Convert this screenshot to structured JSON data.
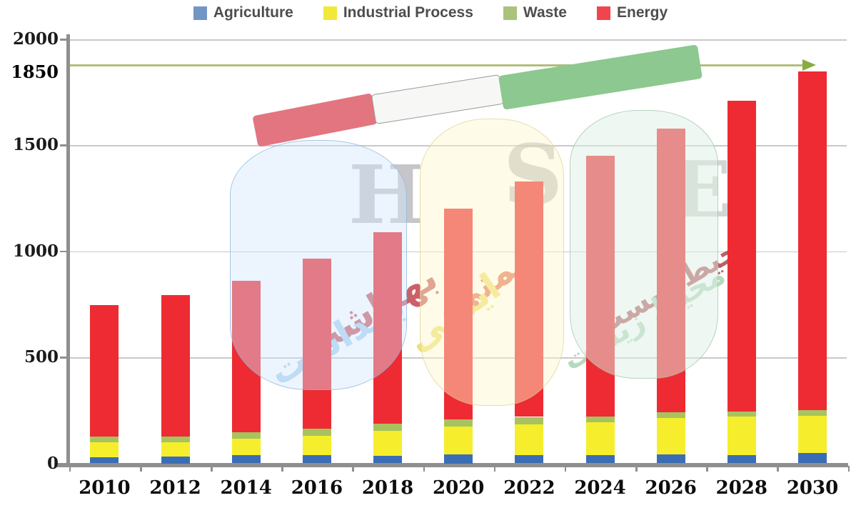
{
  "legend": [
    {
      "label": "Agriculture",
      "color": "#7296c4"
    },
    {
      "label": "Industrial Process",
      "color": "#f2e838"
    },
    {
      "label": "Waste",
      "color": "#abc27b"
    },
    {
      "label": "Energy",
      "color": "#f1454d"
    }
  ],
  "chart_data": {
    "type": "stacked-bar",
    "title": "",
    "categories": [
      "2010",
      "2012",
      "2014",
      "2016",
      "2018",
      "2020",
      "2022",
      "2024",
      "2026",
      "2028",
      "2030"
    ],
    "series": [
      {
        "name": "Agriculture",
        "color": "#3a6db5",
        "values": [
          30,
          32,
          38,
          40,
          34,
          42,
          38,
          38,
          41,
          38,
          50
        ]
      },
      {
        "name": "Industrial Process",
        "color": "#f6ee2c",
        "values": [
          68,
          68,
          77,
          90,
          120,
          132,
          147,
          157,
          173,
          183,
          174
        ]
      },
      {
        "name": "Waste",
        "color": "#a7c35f",
        "values": [
          28,
          25,
          33,
          34,
          34,
          34,
          34,
          26,
          26,
          23,
          28
        ]
      },
      {
        "name": "Energy",
        "color": "#ee2b33",
        "values": [
          619,
          670,
          712,
          801,
          902,
          992,
          1111,
          1229,
          1340,
          1466,
          1598
        ]
      }
    ],
    "totals": [
      745,
      795,
      860,
      965,
      1090,
      1200,
      1330,
      1450,
      1580,
      1710,
      1850
    ],
    "ylim": [
      0,
      2000
    ],
    "yticks": [
      0,
      500,
      1000,
      1500,
      2000
    ],
    "grid": "horizontal",
    "legend_position": "top",
    "target_line": {
      "value": 1850,
      "label": "1850",
      "color": "#b3bd7a",
      "arrow_color": "#86ad3f"
    }
  },
  "watermark": {
    "letters": [
      {
        "char": "H"
      },
      {
        "char": "S"
      },
      {
        "char": "E"
      }
    ],
    "words": [
      {
        "text": "بهداشت",
        "color": "#aed5f0",
        "echo_color": "#c2454e"
      },
      {
        "text": "ایمنی",
        "color": "#eee07a",
        "echo_color": "#e05a38"
      },
      {
        "text": "محیط زیست",
        "color": "#b7d9bf",
        "echo_color": "#a83a42"
      }
    ],
    "flag": {
      "red": "#e2757f",
      "white": "#f7f7f5",
      "green": "#8cc88f"
    }
  }
}
